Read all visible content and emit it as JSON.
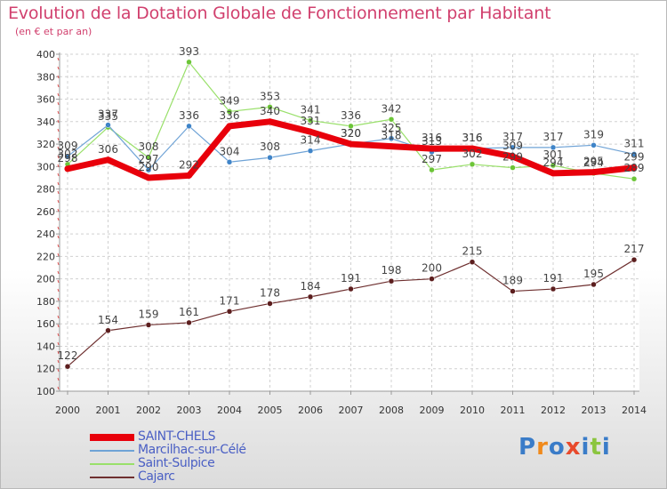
{
  "title": "Evolution de la Dotation Globale de Fonctionnement par Habitant",
  "subtitle": "(en € et par an)",
  "brand": "Proxiti",
  "chart_data": {
    "type": "line",
    "title": "Evolution de la Dotation Globale de Fonctionnement par Habitant",
    "ylabel": "(en € et par an)",
    "xlabel": "",
    "grid": true,
    "ylim": [
      100,
      400
    ],
    "ytick_step": 20,
    "x": [
      "2000",
      "2001",
      "2002",
      "2003",
      "2004",
      "2005",
      "2006",
      "2007",
      "2008",
      "2009",
      "2010",
      "2011",
      "2012",
      "2013",
      "2014"
    ],
    "series": [
      {
        "name": "SAINT-CHELS",
        "color": "#e8000b",
        "marker": "#e8000b",
        "values": [
          298,
          306,
          290,
          292,
          336,
          340,
          331,
          320,
          318,
          316,
          316,
          309,
          294,
          295,
          299
        ],
        "labels": [
          "298",
          "306",
          "290",
          "292",
          "336",
          "340",
          "331",
          "320",
          "318",
          "316",
          "316",
          "309",
          "294",
          "295",
          "299"
        ]
      },
      {
        "name": "Marcilhac-sur-Célé",
        "color": "#6fa3d6",
        "marker": "#3f84c8",
        "values": [
          309,
          337,
          297,
          336,
          304,
          308,
          314,
          320,
          325,
          313,
          316,
          317,
          317,
          319,
          311
        ],
        "labels": [
          "309",
          "337",
          "297",
          "336",
          "304",
          "308",
          "314",
          "320",
          "325",
          "313",
          "316",
          "317",
          "317",
          "319",
          "311"
        ]
      },
      {
        "name": "Saint-Sulpice",
        "color": "#99e06a",
        "marker": "#6cc537",
        "values": [
          302,
          335,
          308,
          393,
          349,
          353,
          341,
          336,
          342,
          297,
          302,
          299,
          301,
          294,
          289
        ],
        "labels": [
          "302",
          "335",
          "308",
          "393",
          "349",
          "353",
          "341",
          "336",
          "342",
          "297",
          "302",
          "299",
          "301",
          "294",
          "289"
        ]
      },
      {
        "name": "Cajarc",
        "color": "#6e2f2f",
        "marker": "#5c1e1e",
        "values": [
          122,
          154,
          159,
          161,
          171,
          178,
          184,
          191,
          198,
          200,
          215,
          189,
          191,
          195,
          217
        ],
        "labels": [
          "122",
          "154",
          "159",
          "161",
          "171",
          "178",
          "184",
          "191",
          "198",
          "200",
          "215",
          "189",
          "191",
          "195",
          "217"
        ]
      }
    ]
  },
  "legend": {
    "items": [
      {
        "label": "SAINT-CHELS",
        "color": "#e8000b",
        "text_color": "#4a5fc4"
      },
      {
        "label": "Marcilhac-sur-Célé",
        "color": "#6fa3d6",
        "text_color": "#4a5fc4"
      },
      {
        "label": "Saint-Sulpice",
        "color": "#99e06a",
        "text_color": "#4a5fc4"
      },
      {
        "label": "Cajarc",
        "color": "#6e2f2f",
        "text_color": "#4a5fc4"
      }
    ]
  }
}
